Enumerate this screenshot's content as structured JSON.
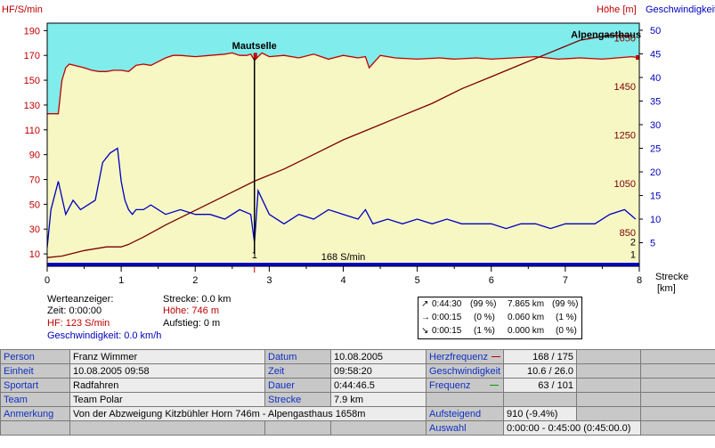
{
  "colors": {
    "hr": "#c00000",
    "speed": "#0000c0",
    "altitude": "#7a0000",
    "above_fill": "#80ecec",
    "plot_fill": "#f7f7c4",
    "bar": "#0000cc"
  },
  "chart_data": {
    "type": "line",
    "left_axis_label": "HF/S/min",
    "right_axis_label_1": "Höhe [m]",
    "right_axis_label_2": "Geschwindigkeit",
    "x_axis_label": "Strecke",
    "x_axis_unit": "[km]",
    "xlim": [
      0,
      8
    ],
    "x_ticks": [
      "0",
      "1",
      "2",
      "3",
      "4",
      "5",
      "6",
      "7",
      "8"
    ],
    "hr_ylim": [
      0,
      196
    ],
    "hr_ticks": [
      "190",
      "170",
      "150",
      "130",
      "110",
      "90",
      "70",
      "50",
      "30",
      "10"
    ],
    "alt_ylim": [
      710,
      1710
    ],
    "alt_ticks": [
      "1650",
      "1450",
      "1250",
      "1050",
      "850"
    ],
    "speed_ylim": [
      0,
      51.5
    ],
    "speed_ticks": [
      "50",
      "45",
      "40",
      "35",
      "30",
      "25",
      "20",
      "15",
      "10",
      "5"
    ],
    "extra_ticks": [
      "2",
      "1"
    ],
    "cursor_km": 2.8,
    "cursor_label": "1",
    "bar_label": "168 S/min",
    "annotations": [
      {
        "text": "Mautselle",
        "x": 2.8,
        "hr": 178
      },
      {
        "text": "Alpengasthaus",
        "x": 7.55,
        "hr": 187
      }
    ],
    "series": [
      {
        "name": "HF",
        "x": [
          0,
          0.15,
          0.18,
          0.2,
          0.25,
          0.3,
          0.5,
          0.6,
          0.7,
          0.8,
          0.9,
          1.0,
          1.1,
          1.2,
          1.3,
          1.4,
          1.5,
          1.6,
          1.7,
          1.8,
          2.0,
          2.2,
          2.4,
          2.5,
          2.6,
          2.7,
          2.75,
          2.8,
          2.9,
          3.0,
          3.2,
          3.4,
          3.6,
          3.8,
          4.0,
          4.2,
          4.3,
          4.35,
          4.5,
          4.7,
          5.0,
          5.3,
          5.5,
          5.8,
          6.0,
          6.3,
          6.6,
          6.9,
          7.2,
          7.5,
          7.7,
          7.9,
          8.0
        ],
        "values": [
          123,
          123,
          140,
          150,
          160,
          163,
          160,
          158,
          157,
          157,
          158,
          158,
          157,
          162,
          163,
          162,
          165,
          168,
          170,
          170,
          169,
          170,
          171,
          172,
          170,
          170,
          171,
          166,
          172,
          169,
          170,
          168,
          171,
          167,
          170,
          168,
          169,
          160,
          170,
          168,
          167,
          168,
          167,
          168,
          167,
          168,
          169,
          167,
          168,
          167,
          168,
          169,
          168
        ]
      },
      {
        "name": "Geschwindigkeit",
        "x": [
          0,
          0.05,
          0.15,
          0.25,
          0.35,
          0.45,
          0.55,
          0.65,
          0.75,
          0.85,
          0.95,
          1.0,
          1.05,
          1.1,
          1.15,
          1.2,
          1.3,
          1.4,
          1.6,
          1.8,
          2.0,
          2.2,
          2.4,
          2.6,
          2.75,
          2.8,
          2.85,
          3.0,
          3.2,
          3.4,
          3.6,
          3.8,
          4.0,
          4.2,
          4.3,
          4.4,
          4.6,
          4.8,
          5.0,
          5.2,
          5.4,
          5.6,
          5.8,
          6.0,
          6.2,
          6.4,
          6.6,
          6.8,
          7.0,
          7.2,
          7.4,
          7.6,
          7.8,
          7.95
        ],
        "values": [
          4,
          12,
          18,
          11,
          14,
          12,
          13,
          14,
          22,
          24,
          25,
          18,
          14,
          12,
          11,
          12,
          12,
          13,
          11,
          12,
          11,
          11,
          10,
          12,
          11,
          5,
          16,
          11,
          9,
          11,
          10,
          12,
          11,
          10,
          12,
          9,
          10,
          9,
          10,
          9,
          10,
          9,
          9,
          9,
          8,
          9,
          9,
          8,
          9,
          9,
          9,
          11,
          12,
          10
        ]
      },
      {
        "name": "Höhe",
        "x": [
          0,
          0.2,
          0.5,
          0.8,
          1.0,
          1.1,
          1.3,
          1.6,
          2.0,
          2.4,
          2.8,
          3.2,
          3.6,
          4.0,
          4.4,
          4.8,
          5.2,
          5.6,
          6.0,
          6.4,
          6.8,
          7.2,
          7.6,
          7.9
        ],
        "values": [
          746,
          752,
          775,
          790,
          790,
          800,
          830,
          880,
          940,
          1000,
          1060,
          1110,
          1170,
          1230,
          1280,
          1330,
          1380,
          1440,
          1490,
          1540,
          1590,
          1640,
          1660,
          1658
        ]
      }
    ]
  },
  "readout": {
    "title": "Werteanzeiger:",
    "zeit": "Zeit: 0:00:00",
    "hf": "HF: 123 S/min",
    "geschwindigkeit": "Geschwindigkeit: 0.0 km/h",
    "strecke": "Strecke: 0.0 km",
    "hoehe": "Höhe: 746 m",
    "aufstieg": "Aufstieg: 0 m"
  },
  "stats": [
    {
      "arrow": "↗",
      "time": "0:44:30",
      "pct1": "(99 %)",
      "dist": "7.865 km",
      "pct2": "(99 %)"
    },
    {
      "arrow": "→",
      "time": "0:00:15",
      "pct1": "(0 %)",
      "dist": "0.060 km",
      "pct2": "(1 %)"
    },
    {
      "arrow": "↘",
      "time": "0:00:15",
      "pct1": "(1 %)",
      "dist": "0.000 km",
      "pct2": "(0 %)"
    }
  ],
  "info": {
    "person_label": "Person",
    "person": "Franz Wimmer",
    "einheit_label": "Einheit",
    "einheit": "10.08.2005 09:58",
    "sportart_label": "Sportart",
    "sportart": "Radfahren",
    "team_label": "Team",
    "team": "Team Polar",
    "anmerkung_label": "Anmerkung",
    "anmerkung": "Von der Abzweigung Kitzbühler Horn 746m - Alpengasthaus 1658m",
    "datum_label": "Datum",
    "datum": "10.08.2005",
    "zeit_label": "Zeit",
    "zeit": "09:58:20",
    "dauer_label": "Dauer",
    "dauer": "0:44:46.5",
    "strecke_label": "Strecke",
    "strecke": "7.9 km",
    "herzfrequenz_label": "Herzfrequenz",
    "herzfrequenz": "168 / 175",
    "geschwindigkeit_label": "Geschwindigkeit",
    "geschwindigkeit": "10.6 / 26.0",
    "frequenz_label": "Frequenz",
    "frequenz": "63 / 101",
    "aufsteigend_label": "Aufsteigend",
    "aufsteigend": "910 (-9.4%)",
    "auswahl_label": "Auswahl",
    "auswahl": "0:00:00 - 0:45:00 (0:45:00.0)"
  }
}
